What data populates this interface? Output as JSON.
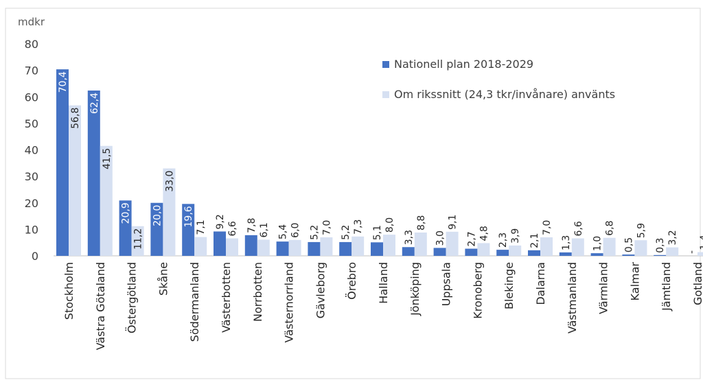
{
  "chart_data": {
    "type": "bar",
    "unit_label": "mdkr",
    "ylim": [
      0,
      80
    ],
    "yticks": [
      0,
      10,
      20,
      30,
      40,
      50,
      60,
      70,
      80
    ],
    "grid": false,
    "legend_position": "top-right",
    "categories": [
      "Stockholm",
      "Västra Götaland",
      "Östergötland",
      "Skåne",
      "Södermanland",
      "Västerbotten",
      "Norrbotten",
      "Västernorrland",
      "Gävleborg",
      "Örebro",
      "Halland",
      "Jönköping",
      "Uppsala",
      "Kronoberg",
      "Blekinge",
      "Dalarna",
      "Västmanland",
      "Värmland",
      "Kalmar",
      "Jämtland",
      "Gotland"
    ],
    "series": [
      {
        "name": "Nationell plan 2018-2029",
        "color": "#4472C4",
        "values": [
          70.4,
          62.4,
          20.9,
          20.0,
          19.6,
          9.2,
          7.8,
          5.4,
          5.2,
          5.2,
          5.1,
          3.3,
          3.0,
          2.7,
          2.3,
          2.1,
          1.3,
          1.0,
          0.5,
          0.3,
          0
        ],
        "labels": [
          "70,4",
          "62,4",
          "20,9",
          "20,0",
          "19,6",
          "9,2",
          "7,8",
          "5,4",
          "5,2",
          "5,2",
          "5,1",
          "3,3",
          "3,0",
          "2,7",
          "2,3",
          "2,1",
          "1,3",
          "1,0",
          "0,5",
          "0,3",
          "-"
        ]
      },
      {
        "name": "Om rikssnitt (24,3 tkr/invånare) använts",
        "color": "#D6E0F2",
        "values": [
          56.8,
          41.5,
          11.2,
          33.0,
          7.1,
          6.6,
          6.1,
          6.0,
          7.0,
          7.3,
          8.0,
          8.8,
          9.1,
          4.8,
          3.9,
          7.0,
          6.6,
          6.8,
          5.9,
          3.2,
          1.4
        ],
        "labels": [
          "56,8",
          "41,5",
          "11,2",
          "33,0",
          "7,1",
          "6,6",
          "6,1",
          "6,0",
          "7,0",
          "7,3",
          "8,0",
          "8,8",
          "9,1",
          "4,8",
          "3,9",
          "7,0",
          "6,6",
          "6,8",
          "5,9",
          "3,2",
          "1,4"
        ]
      }
    ]
  }
}
